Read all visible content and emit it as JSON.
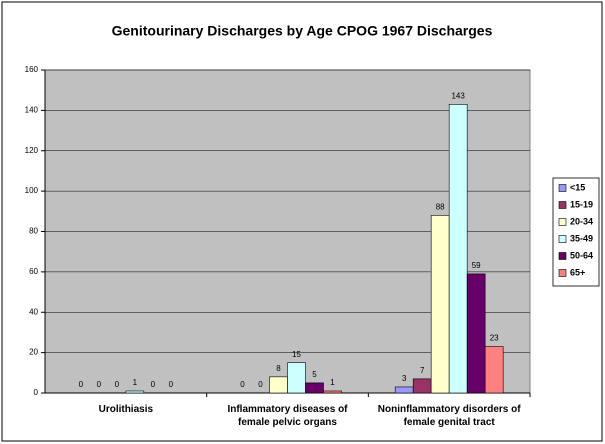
{
  "chart_data": {
    "type": "bar",
    "title": "Genitourinary Discharges by Age CPOG 1967 Discharges",
    "categories": [
      "Urolithiasis",
      "Inflammatory diseases of female pelvic organs",
      "Noninflammatory disorders of female genital tract"
    ],
    "series": [
      {
        "name": "<15",
        "color": "#9999FF",
        "values": [
          0,
          0,
          3
        ]
      },
      {
        "name": "15-19",
        "color": "#993366",
        "values": [
          0,
          0,
          7
        ]
      },
      {
        "name": "20-34",
        "color": "#FFFFCC",
        "values": [
          0,
          8,
          88
        ]
      },
      {
        "name": "35-49",
        "color": "#CCFFFF",
        "values": [
          1,
          15,
          143
        ]
      },
      {
        "name": "50-64",
        "color": "#660066",
        "values": [
          0,
          5,
          59
        ]
      },
      {
        "name": "65+",
        "color": "#FF8080",
        "values": [
          0,
          1,
          23
        ]
      }
    ],
    "ylim": [
      0,
      160
    ],
    "yticks": [
      0,
      20,
      40,
      60,
      80,
      100,
      120,
      140,
      160
    ],
    "grid": true,
    "legend": "right",
    "plot_background": "#C0C0C0"
  }
}
